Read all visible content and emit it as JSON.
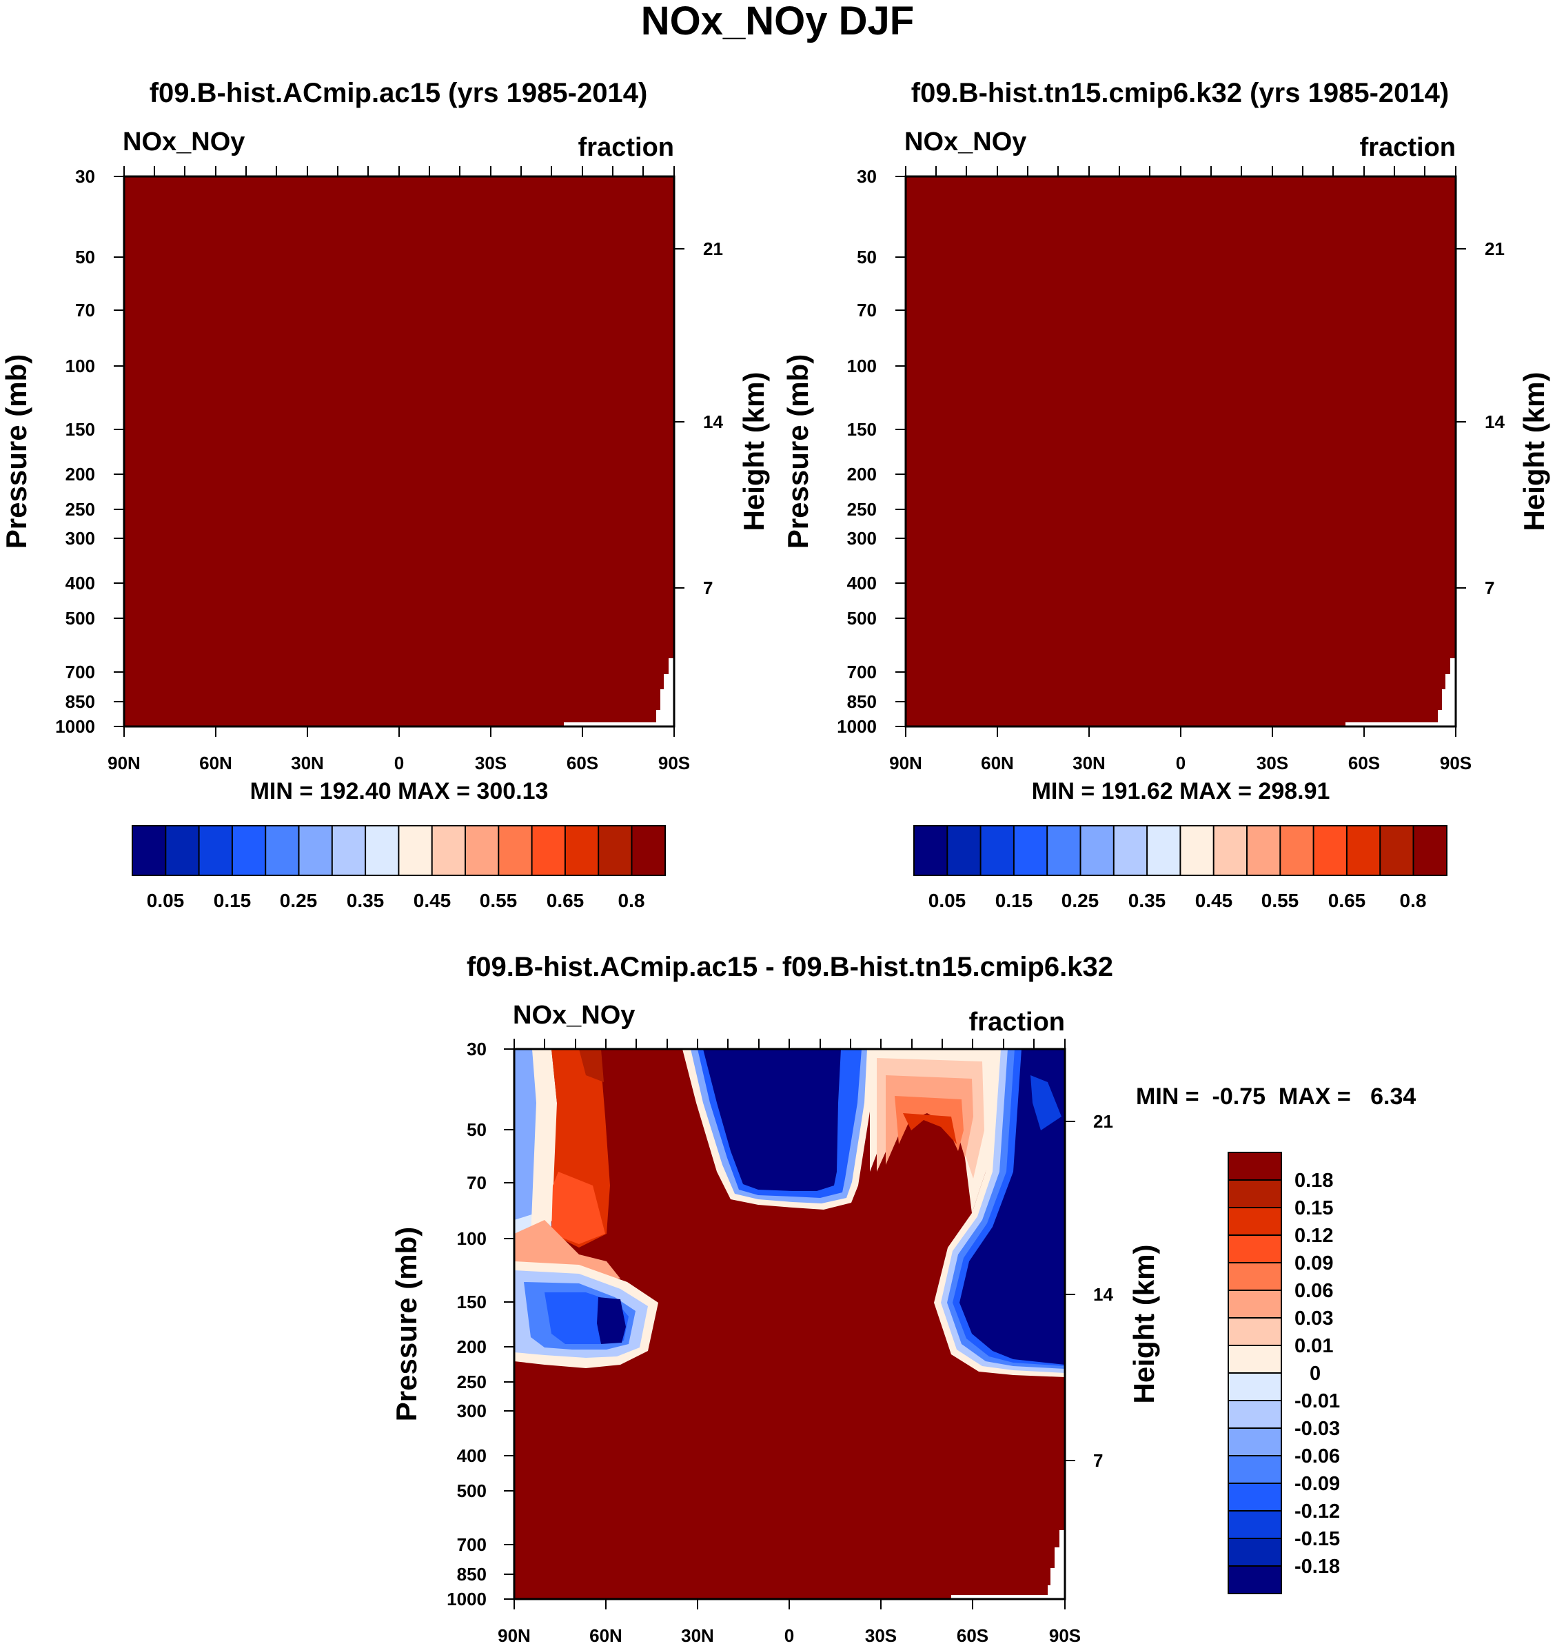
{
  "figure": {
    "title": "NOx_NOy DJF"
  },
  "colors": {
    "panel_fill": "#8b0000",
    "colorbar_scale": [
      "#000080",
      "#0024b3",
      "#0a3fe0",
      "#1f5cff",
      "#4a82ff",
      "#82a9ff",
      "#b3caff",
      "#dceaff",
      "#fff0e1",
      "#ffcbb3",
      "#ffa584",
      "#ff7a4d",
      "#ff4f1f",
      "#e03000",
      "#b31f00",
      "#8b0000"
    ]
  },
  "chart_data": [
    {
      "type": "heatmap",
      "panel": "top-left",
      "title": "f09.B-hist.ACmip.ac15 (yrs 1985-2014)",
      "variable": "NOx_NOy",
      "units": "fraction",
      "ylabel": "Pressure (mb)",
      "ylabel_right": "Height (km)",
      "x_ticks": [
        "90N",
        "60N",
        "30N",
        "0",
        "30S",
        "60S",
        "90S"
      ],
      "x_values": [
        90,
        60,
        30,
        0,
        -30,
        -60,
        -90
      ],
      "y_ticks": [
        30,
        50,
        70,
        100,
        150,
        200,
        250,
        300,
        400,
        500,
        700,
        850,
        1000
      ],
      "y_right_ticks": [
        21,
        14,
        7
      ],
      "ylim": [
        1000,
        30
      ],
      "fill_level": 0.8,
      "stats": "MIN = 192.40  MAX = 300.13",
      "colorbar": {
        "orientation": "horizontal",
        "labels": [
          "0.05",
          "0.15",
          "0.25",
          "0.35",
          "0.45",
          "0.55",
          "0.65",
          "0.8"
        ]
      }
    },
    {
      "type": "heatmap",
      "panel": "top-right",
      "title": "f09.B-hist.tn15.cmip6.k32 (yrs 1985-2014)",
      "variable": "NOx_NOy",
      "units": "fraction",
      "ylabel": "Pressure (mb)",
      "ylabel_right": "Height (km)",
      "x_ticks": [
        "90N",
        "60N",
        "30N",
        "0",
        "30S",
        "60S",
        "90S"
      ],
      "x_values": [
        90,
        60,
        30,
        0,
        -30,
        -60,
        -90
      ],
      "y_ticks": [
        30,
        50,
        70,
        100,
        150,
        200,
        250,
        300,
        400,
        500,
        700,
        850,
        1000
      ],
      "y_right_ticks": [
        21,
        14,
        7
      ],
      "ylim": [
        1000,
        30
      ],
      "fill_level": 0.8,
      "stats": "MIN = 191.62  MAX = 298.91",
      "colorbar": {
        "orientation": "horizontal",
        "labels": [
          "0.05",
          "0.15",
          "0.25",
          "0.35",
          "0.45",
          "0.55",
          "0.65",
          "0.8"
        ]
      }
    },
    {
      "type": "heatmap",
      "panel": "bottom-difference",
      "title": "f09.B-hist.ACmip.ac15 - f09.B-hist.tn15.cmip6.k32",
      "variable": "NOx_NOy",
      "units": "fraction",
      "ylabel": "Pressure (mb)",
      "ylabel_right": "Height (km)",
      "x_ticks": [
        "90N",
        "60N",
        "30N",
        "0",
        "30S",
        "60S",
        "90S"
      ],
      "x_values": [
        90,
        60,
        30,
        0,
        -30,
        -60,
        -90
      ],
      "y_ticks": [
        30,
        50,
        70,
        100,
        150,
        200,
        250,
        300,
        400,
        500,
        700,
        850,
        1000
      ],
      "y_right_ticks": [
        21,
        14,
        7
      ],
      "ylim": [
        1000,
        30
      ],
      "background_level": 0.18,
      "stats": "MIN =  -0.75  MAX =   6.34",
      "colorbar": {
        "orientation": "vertical",
        "labels": [
          "0.18",
          "0.15",
          "0.12",
          "0.09",
          "0.06",
          "0.03",
          "0.01",
          "0",
          "-0.01",
          "-0.03",
          "-0.06",
          "-0.09",
          "-0.12",
          "-0.15",
          "-0.18"
        ],
        "colors": [
          "#8b0000",
          "#b31f00",
          "#e03000",
          "#ff4f1f",
          "#ff7a4d",
          "#ffa584",
          "#ffcbb3",
          "#fff0e1",
          "#dceaff",
          "#b3caff",
          "#82a9ff",
          "#4a82ff",
          "#1f5cff",
          "#0a3fe0",
          "#0024b3",
          "#000080"
        ]
      },
      "regions": [
        {
          "name": "south-polar-negative",
          "level": -0.18,
          "lat_range": [
            -50,
            -90
          ],
          "p_range": [
            30,
            230
          ]
        },
        {
          "name": "tropical-stratosphere-negative",
          "level": -0.18,
          "lat_range": [
            28,
            -22
          ],
          "p_range": [
            30,
            80
          ]
        },
        {
          "name": "north-150mb-negative",
          "level": -0.18,
          "lat_range": [
            90,
            45
          ],
          "p_range": [
            140,
            215
          ]
        },
        {
          "name": "north-stratosphere-positive",
          "level": 0.12,
          "lat_range": [
            78,
            62
          ],
          "p_range": [
            30,
            120
          ]
        },
        {
          "name": "south-midlat-positive",
          "level": 0.06,
          "lat_range": [
            -28,
            -48
          ],
          "p_range": [
            40,
            110
          ]
        }
      ]
    }
  ]
}
